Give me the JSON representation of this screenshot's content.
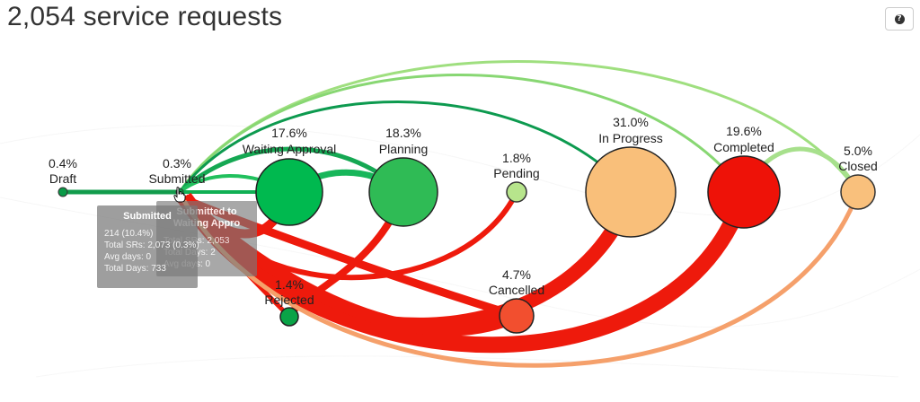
{
  "title": "2,054 service requests",
  "help_icon": "question-circle-icon",
  "colors": {
    "dark_green": "#0a8f43",
    "green": "#1fbf55",
    "light_green": "#9fdf7f",
    "red": "#ef1a0c",
    "orange": "#f5a06b",
    "peach": "#f9bf78"
  },
  "nodes": [
    {
      "id": "draft",
      "pct": "0.4%",
      "label": "Draft",
      "color": "#0a9a47"
    },
    {
      "id": "submitted",
      "pct": "0.3%",
      "label": "Submitted",
      "color": "#0a9a47"
    },
    {
      "id": "waiting",
      "pct": "17.6%",
      "label": "Waiting Approval",
      "color": "#00b94f"
    },
    {
      "id": "planning",
      "pct": "18.3%",
      "label": "Planning",
      "color": "#2fbb55"
    },
    {
      "id": "pending",
      "pct": "1.8%",
      "label": "Pending",
      "color": "#b7e58c"
    },
    {
      "id": "inprogress",
      "pct": "31.0%",
      "label": "In Progress",
      "color": "#f9bf7a"
    },
    {
      "id": "completed",
      "pct": "19.6%",
      "label": "Completed",
      "color": "#ee1208"
    },
    {
      "id": "closed",
      "pct": "5.0%",
      "label": "Closed",
      "color": "#f9c07c"
    },
    {
      "id": "rejected",
      "pct": "1.4%",
      "label": "Rejected",
      "color": "#0aa347"
    },
    {
      "id": "cancelled",
      "pct": "4.7%",
      "label": "Cancelled",
      "color": "#f24f2f"
    }
  ],
  "tooltip_main": {
    "title": "Submitted",
    "lines": [
      "214 (10.4%)",
      "Total SRs: 2,073 (0.3%)",
      "Avg days: 0",
      "Total Days: 733"
    ]
  },
  "tooltip_back": {
    "title": "Submitted to Waiting Appro",
    "lines": [
      "Total SRs: 2,053",
      "Total Days: 2",
      "Avg days: 0"
    ]
  }
}
